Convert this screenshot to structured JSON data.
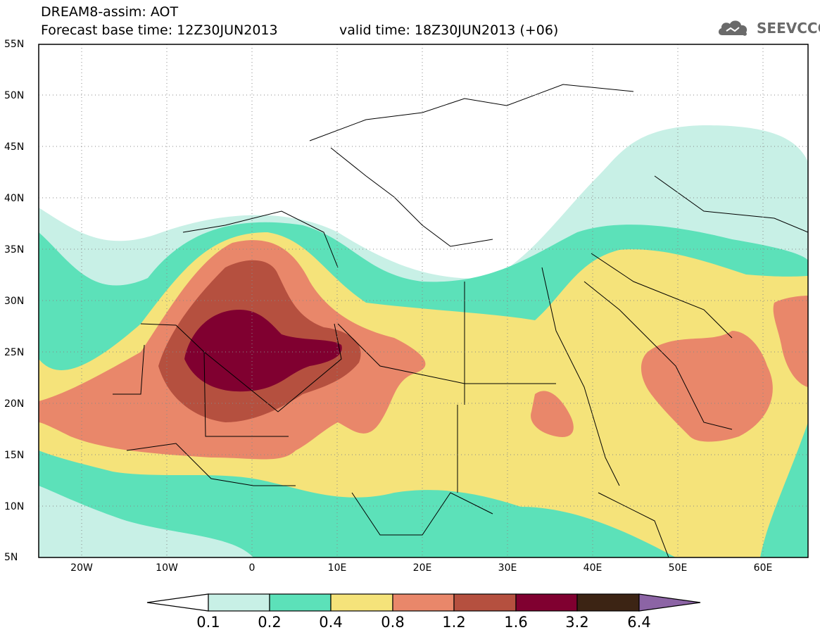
{
  "header": {
    "title_line1": "DREAM8-assim: AOT",
    "title_line2": "Forecast base time: 12Z30JUN2013",
    "valid_time": "valid time: 18Z30JUN2013 (+06)",
    "logo_text": "SEEVCCC",
    "logo_icon": "cloud-icon"
  },
  "axes": {
    "y_labels": [
      "55N",
      "50N",
      "45N",
      "40N",
      "35N",
      "30N",
      "25N",
      "20N",
      "15N",
      "10N",
      "5N"
    ],
    "x_labels": [
      "20W",
      "10W",
      "0",
      "10E",
      "20E",
      "30E",
      "40E",
      "50E",
      "60E"
    ]
  },
  "colorbar": {
    "labels": [
      "0.1",
      "0.2",
      "0.4",
      "0.8",
      "1.2",
      "1.6",
      "3.2",
      "6.4"
    ],
    "colors": [
      "#ffffff",
      "#c8f0e6",
      "#5ce1b9",
      "#f5e37a",
      "#e9876a",
      "#b5503f",
      "#800030",
      "#3c2414",
      "#8c64a5"
    ]
  },
  "map": {
    "lon_range": [
      -25,
      65
    ],
    "lat_range": [
      5,
      55
    ],
    "grid": "dotted"
  }
}
